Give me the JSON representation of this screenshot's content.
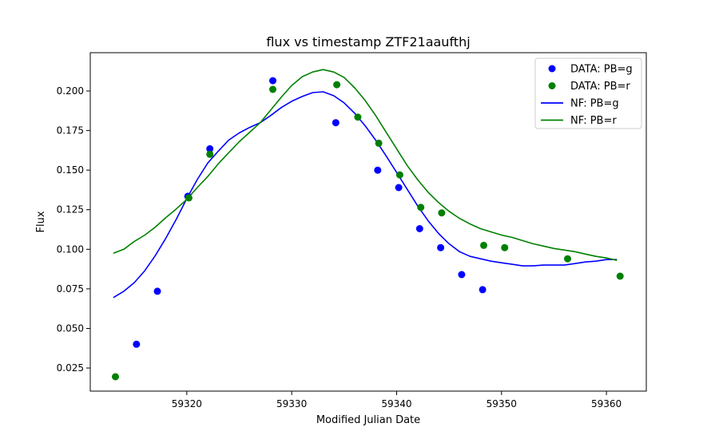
{
  "chart_data": {
    "type": "scatter",
    "title": "flux vs timestamp ZTF21aaufthj",
    "xlabel": "Modified Julian Date",
    "ylabel": "Flux",
    "xlim": [
      59310.8,
      59363.8
    ],
    "ylim": [
      0.0104,
      0.2242
    ],
    "xticks": [
      59320,
      59330,
      59340,
      59350,
      59360
    ],
    "yticks": [
      0.025,
      0.05,
      0.075,
      0.1,
      0.125,
      0.15,
      0.175,
      0.2
    ],
    "xtick_labels": [
      "59320",
      "59330",
      "59340",
      "59350",
      "59360"
    ],
    "ytick_labels": [
      "0.025",
      "0.050",
      "0.075",
      "0.100",
      "0.125",
      "0.150",
      "0.175",
      "0.200"
    ],
    "grid": false,
    "legend_position": "top-right",
    "series": [
      {
        "name": "DATA: PB=g",
        "kind": "scatter",
        "color": "#0000ff",
        "x": [
          59315.2,
          59317.2,
          59320.1,
          59322.2,
          59328.2,
          59334.2,
          59338.2,
          59340.2,
          59342.2,
          59344.2,
          59346.2,
          59348.2
        ],
        "y": [
          0.04,
          0.0735,
          0.1335,
          0.1635,
          0.2065,
          0.18,
          0.15,
          0.139,
          0.113,
          0.101,
          0.084,
          0.0745
        ]
      },
      {
        "name": "DATA: PB=r",
        "kind": "scatter",
        "color": "#008000",
        "x": [
          59313.2,
          59320.2,
          59322.2,
          59328.2,
          59334.3,
          59336.3,
          59338.3,
          59340.3,
          59342.3,
          59344.3,
          59348.3,
          59350.3,
          59356.3,
          59361.3
        ],
        "y": [
          0.0195,
          0.1325,
          0.16,
          0.201,
          0.204,
          0.1835,
          0.167,
          0.147,
          0.1265,
          0.123,
          0.1025,
          0.101,
          0.094,
          0.083
        ]
      },
      {
        "name": "NF: PB=g",
        "kind": "line",
        "color": "#0000ff",
        "x": [
          59313.0,
          59314.0,
          59315.0,
          59316.0,
          59317.0,
          59318.0,
          59319.0,
          59320.0,
          59321.0,
          59322.0,
          59323.0,
          59324.0,
          59325.0,
          59326.0,
          59327.0,
          59328.0,
          59329.0,
          59330.0,
          59331.0,
          59332.0,
          59333.0,
          59334.0,
          59335.0,
          59336.0,
          59337.0,
          59338.0,
          59339.0,
          59340.0,
          59341.0,
          59342.0,
          59343.0,
          59344.0,
          59345.0,
          59346.0,
          59347.0,
          59348.0,
          59349.0,
          59350.0,
          59351.0,
          59352.0,
          59353.0,
          59354.0,
          59355.0,
          59356.0,
          59357.0,
          59358.0,
          59359.0,
          59360.0,
          59361.0
        ],
        "y": [
          0.0695,
          0.0735,
          0.079,
          0.0865,
          0.096,
          0.107,
          0.119,
          0.132,
          0.144,
          0.1545,
          0.162,
          0.169,
          0.1735,
          0.177,
          0.18,
          0.1845,
          0.1895,
          0.1935,
          0.1965,
          0.199,
          0.1995,
          0.197,
          0.1925,
          0.186,
          0.178,
          0.169,
          0.159,
          0.1485,
          0.138,
          0.1275,
          0.118,
          0.11,
          0.1035,
          0.0985,
          0.0955,
          0.094,
          0.0925,
          0.0915,
          0.0905,
          0.0895,
          0.0895,
          0.09,
          0.09,
          0.09,
          0.091,
          0.092,
          0.0925,
          0.0935,
          0.0935
        ]
      },
      {
        "name": "NF: PB=r",
        "kind": "line",
        "color": "#008000",
        "x": [
          59313.0,
          59314.0,
          59315.0,
          59316.0,
          59317.0,
          59318.0,
          59319.0,
          59320.0,
          59321.0,
          59322.0,
          59323.0,
          59324.0,
          59325.0,
          59326.0,
          59327.0,
          59328.0,
          59329.0,
          59330.0,
          59331.0,
          59332.0,
          59333.0,
          59334.0,
          59335.0,
          59336.0,
          59337.0,
          59338.0,
          59339.0,
          59340.0,
          59341.0,
          59342.0,
          59343.0,
          59344.0,
          59345.0,
          59346.0,
          59347.0,
          59348.0,
          59349.0,
          59350.0,
          59351.0,
          59352.0,
          59353.0,
          59354.0,
          59355.0,
          59356.0,
          59357.0,
          59358.0,
          59359.0,
          59360.0,
          59361.0
        ],
        "y": [
          0.0975,
          0.1,
          0.105,
          0.109,
          0.114,
          0.12,
          0.1255,
          0.1315,
          0.139,
          0.146,
          0.154,
          0.161,
          0.168,
          0.174,
          0.18,
          0.188,
          0.196,
          0.2035,
          0.209,
          0.212,
          0.2135,
          0.212,
          0.2085,
          0.202,
          0.194,
          0.1845,
          0.174,
          0.1635,
          0.153,
          0.144,
          0.136,
          0.1295,
          0.124,
          0.1195,
          0.116,
          0.113,
          0.111,
          0.109,
          0.1075,
          0.1055,
          0.1035,
          0.102,
          0.1005,
          0.0995,
          0.0985,
          0.097,
          0.0955,
          0.0945,
          0.093
        ]
      }
    ]
  }
}
